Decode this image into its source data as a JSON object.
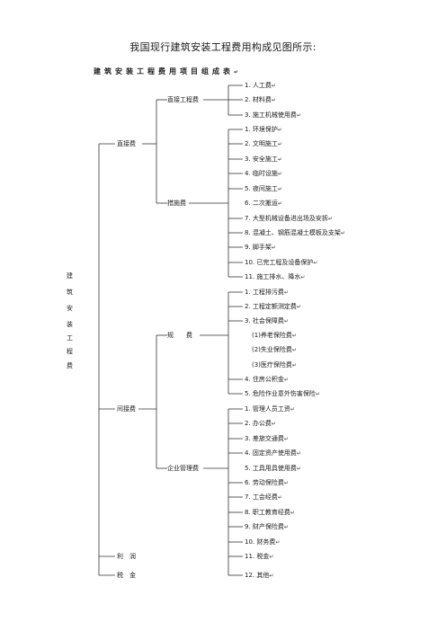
{
  "title": "我国现行建筑安装工程费用构成见图所示:",
  "table_heading": "建筑安装工程费用项目组成表",
  "return_mark": "↵",
  "root_chars": [
    "建",
    "筑",
    "安",
    "装",
    "工",
    "程",
    "费"
  ],
  "level1": {
    "direct": "直接费",
    "indirect": "间接费",
    "profit": "利　润",
    "tax": "税　金"
  },
  "level2": {
    "direct_engineering": "直接工程费",
    "measures": "措施费",
    "fees": "规　　费",
    "enterprise_mgmt": "企业管理费"
  },
  "items": [
    "1. 人工费",
    "2. 材料费",
    "3. 施工机械使用费",
    "1. 环境保护",
    "2. 文明施工",
    "3. 安全施工",
    "4. 临时设施",
    "5. 夜间施工",
    "6. 二次搬运",
    "7. 大型机械设备进出场及安拆",
    "8. 混凝土、钢筋混凝土模板及支架",
    "9. 脚手架",
    "10. 已完工程及设备保护",
    "11. 施工排水、降水",
    "1. 工程排污费",
    "2. 工程定额测定费",
    "3. 社会保障费",
    "(1)养老保险费",
    "(2)失业保险费",
    "(3)医疗保险费",
    "4. 住房公积金",
    "5. 危险作业意外伤害保险",
    "1. 管理人员工资",
    "2. 办公费",
    "3. 差旅交通费",
    "4. 固定资产使用费",
    "5. 工具用具使用费",
    "6. 劳动保险费",
    "7. 工会经费",
    "8. 职工教育经费",
    "9. 财产保险费",
    "10. 财务费",
    "11. 税金",
    "12. 其他"
  ]
}
